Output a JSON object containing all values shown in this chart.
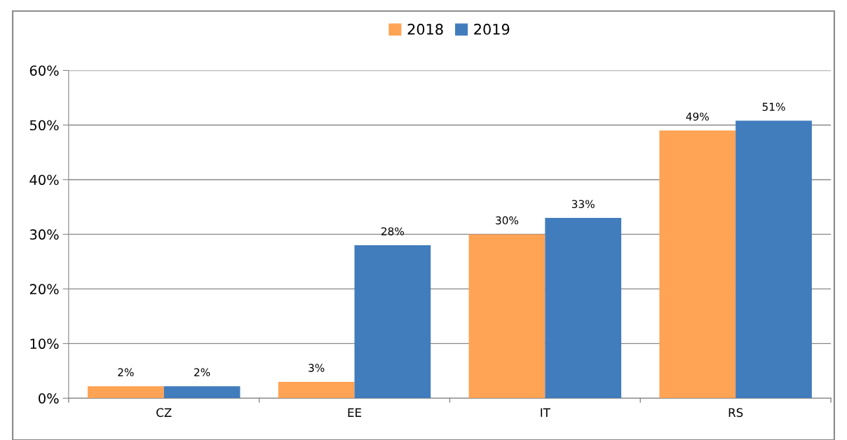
{
  "chart_data": {
    "type": "bar",
    "categories": [
      "CZ",
      "EE",
      "IT",
      "RS"
    ],
    "series": [
      {
        "name": "2018",
        "color": "#ffa354",
        "values": [
          2.2,
          3,
          30,
          49
        ],
        "value_labels": [
          "2%",
          "3%",
          "30%",
          "49%"
        ]
      },
      {
        "name": "2019",
        "color": "#417cbd",
        "values": [
          2.2,
          28,
          33,
          50.8
        ],
        "value_labels": [
          "2%",
          "28%",
          "33%",
          "51%"
        ]
      }
    ],
    "ylim": [
      0,
      60
    ],
    "yticks": [
      {
        "value": 0,
        "label": "0%"
      },
      {
        "value": 10,
        "label": "10%"
      },
      {
        "value": 20,
        "label": "20%"
      },
      {
        "value": 30,
        "label": "30%"
      },
      {
        "value": 40,
        "label": "40%"
      },
      {
        "value": 50,
        "label": "50%"
      },
      {
        "value": 60,
        "label": "60%"
      }
    ],
    "grid": "y",
    "legend": "top"
  }
}
